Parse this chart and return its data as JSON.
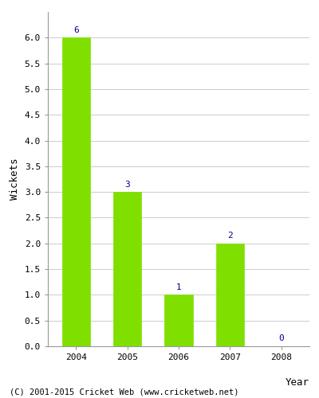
{
  "categories": [
    "2004",
    "2005",
    "2006",
    "2007",
    "2008"
  ],
  "values": [
    6,
    3,
    1,
    2,
    0
  ],
  "bar_color": "#7FE000",
  "bar_edgecolor": "#7FE000",
  "xlabel": "Year",
  "ylabel": "Wickets",
  "ylim": [
    0,
    6.5
  ],
  "yticks": [
    0.0,
    0.5,
    1.0,
    1.5,
    2.0,
    2.5,
    3.0,
    3.5,
    4.0,
    4.5,
    5.0,
    5.5,
    6.0
  ],
  "label_color": "#00008B",
  "label_fontsize": 8,
  "axis_label_fontsize": 9,
  "tick_fontsize": 8,
  "grid_color": "#cccccc",
  "background_color": "#ffffff",
  "footer_text": "(C) 2001-2015 Cricket Web (www.cricketweb.net)",
  "footer_fontsize": 7.5,
  "bar_width": 0.55
}
